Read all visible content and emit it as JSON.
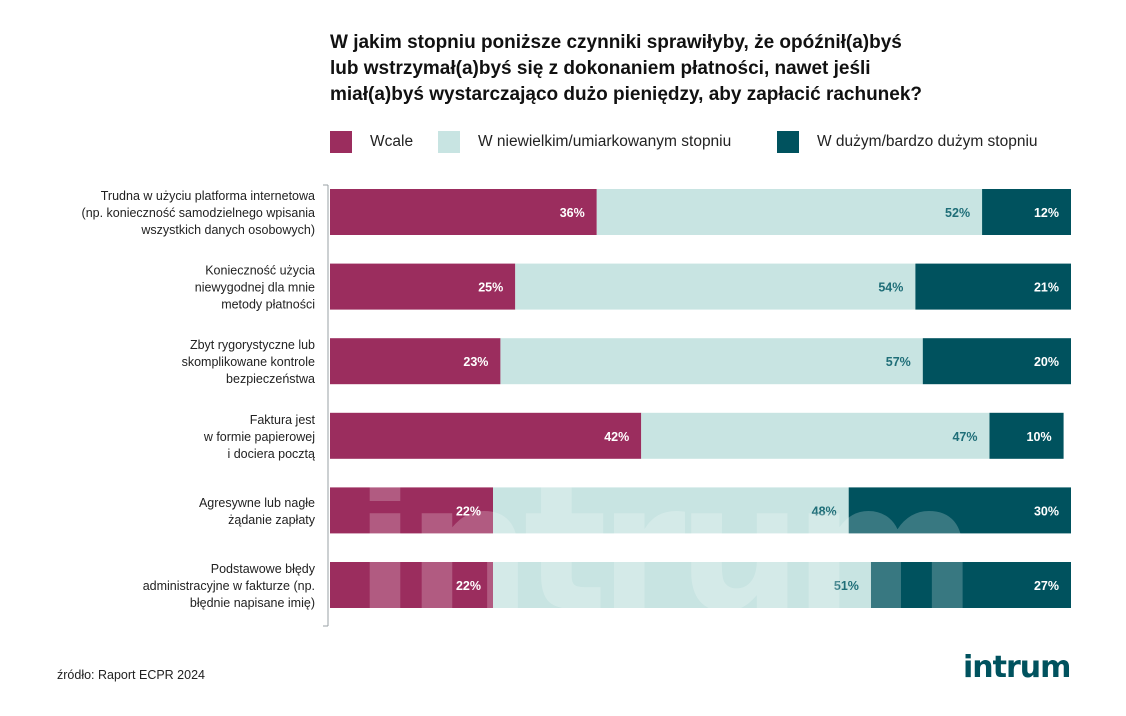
{
  "title_lines": [
    "W jakim stopniu poniższe czynniki sprawiłyby, że opóźnił(a)byś",
    "lub wstrzymał(a)byś się z dokonaniem płatności, nawet jeśli",
    "miał(a)byś wystarczająco dużo pieniędzy, aby zapłacić rachunek?"
  ],
  "legend": [
    {
      "label": "Wcale",
      "color": "#9b2d5e"
    },
    {
      "label": "W niewielkim/umiarkowanym stopniu",
      "color": "#c8e4e2"
    },
    {
      "label": "W dużym/bardzo dużym stopniu",
      "color": "#00525e"
    }
  ],
  "source": "źródło: Raport ECPR 2024",
  "logo": "intrum",
  "chart_data": {
    "type": "bar",
    "orientation": "horizontal",
    "stacked": true,
    "categories": [
      [
        "Trudna w użyciu platforma internetowa",
        "(np. konieczność samodzielnego wpisania",
        "wszystkich danych osobowych)"
      ],
      [
        "Konieczność użycia",
        "niewygodnej dla mnie",
        "metody płatności"
      ],
      [
        "Zbyt rygorystyczne lub",
        "skomplikowane kontrole",
        "bezpieczeństwa"
      ],
      [
        "Faktura jest",
        "w formie papierowej",
        "i dociera pocztą"
      ],
      [
        "Agresywne lub nagłe",
        "żądanie zapłaty"
      ],
      [
        "Podstawowe błędy",
        "administracyjne w fakturze (np.",
        "błędnie napisane imię)"
      ]
    ],
    "series": [
      {
        "name": "Wcale",
        "color": "#9b2d5e",
        "label_color": "#ffffff",
        "values": [
          36,
          25,
          23,
          42,
          22,
          22
        ]
      },
      {
        "name": "W niewielkim/umiarkowanym stopniu",
        "color": "#c8e4e2",
        "label_color": "#1f6e78",
        "values": [
          52,
          54,
          57,
          47,
          48,
          51
        ]
      },
      {
        "name": "W dużym/bardzo dużym stopniu",
        "color": "#00525e",
        "label_color": "#ffffff",
        "values": [
          12,
          21,
          20,
          10,
          30,
          27
        ]
      }
    ],
    "value_suffix": "%",
    "xlim": [
      0,
      100
    ]
  }
}
